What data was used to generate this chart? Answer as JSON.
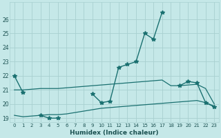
{
  "xlabel": "Humidex (Indice chaleur)",
  "x_values": [
    0,
    1,
    2,
    3,
    4,
    5,
    6,
    7,
    8,
    9,
    10,
    11,
    12,
    13,
    14,
    15,
    16,
    17,
    18,
    19,
    20,
    21,
    22,
    23
  ],
  "line_main": [
    22.0,
    20.8,
    null,
    19.2,
    19.0,
    19.0,
    null,
    null,
    null,
    20.7,
    20.1,
    20.2,
    22.6,
    22.8,
    23.0,
    25.0,
    24.6,
    26.5,
    null,
    21.3,
    21.6,
    21.5,
    20.1,
    19.8
  ],
  "line_upper": [
    21.0,
    21.0,
    21.05,
    21.1,
    21.1,
    21.1,
    21.15,
    21.2,
    21.25,
    21.3,
    21.35,
    21.4,
    21.45,
    21.5,
    21.55,
    21.6,
    21.65,
    21.7,
    21.3,
    21.3,
    21.35,
    21.4,
    21.1,
    20.0
  ],
  "line_lower": [
    19.2,
    19.1,
    19.15,
    19.2,
    19.25,
    19.25,
    19.3,
    19.4,
    19.5,
    19.6,
    19.7,
    19.75,
    19.8,
    19.85,
    19.9,
    19.95,
    20.0,
    20.05,
    20.1,
    20.15,
    20.2,
    20.25,
    20.1,
    19.85
  ],
  "bg_color": "#c5e8e8",
  "grid_color": "#a8d0d0",
  "line_color": "#1a7070",
  "ylim": [
    18.7,
    27.2
  ],
  "yticks": [
    19,
    20,
    21,
    22,
    23,
    24,
    25,
    26
  ],
  "xticks": [
    0,
    1,
    2,
    3,
    4,
    5,
    6,
    7,
    8,
    9,
    10,
    11,
    12,
    13,
    14,
    15,
    16,
    17,
    18,
    19,
    20,
    21,
    22,
    23
  ]
}
